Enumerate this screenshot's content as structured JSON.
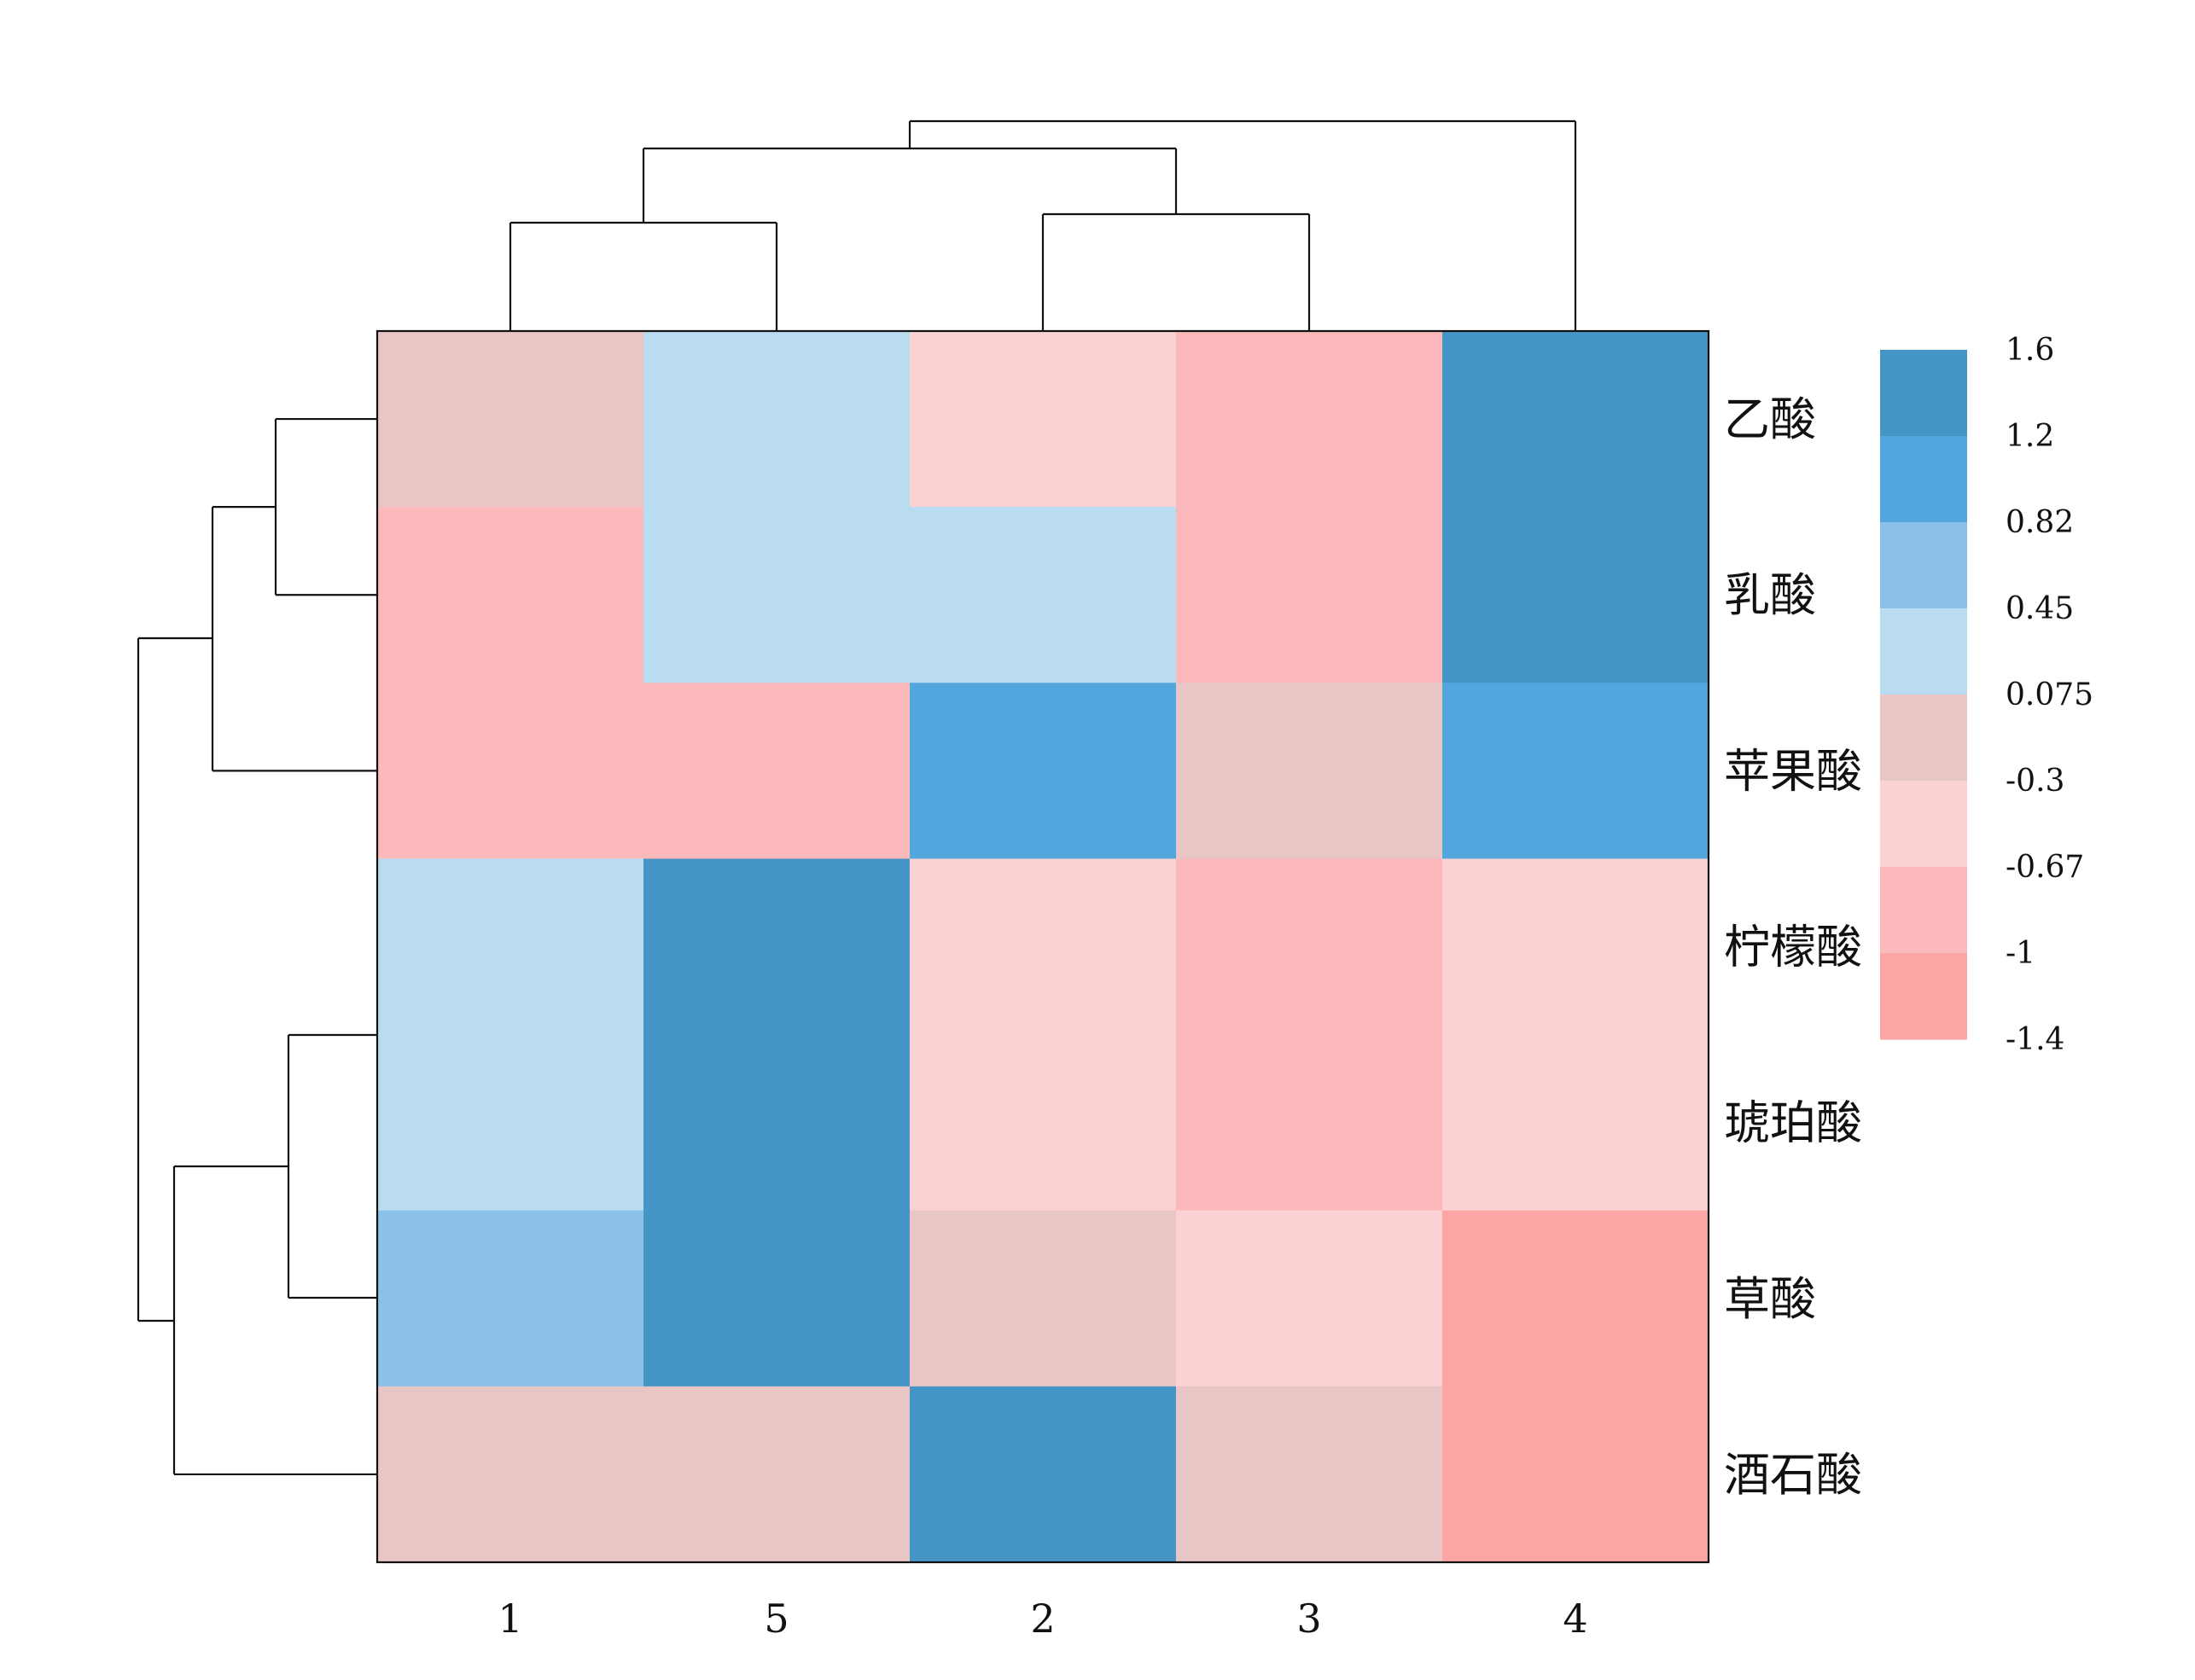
{
  "chart_data": {
    "type": "heatmap",
    "title": "",
    "columns": [
      "1",
      "5",
      "2",
      "3",
      "4"
    ],
    "rows": [
      "乙酸",
      "乳酸",
      "苹果酸",
      "柠檬酸",
      "琥珀酸",
      "草酸",
      "酒石酸"
    ],
    "values": [
      [
        -0.2,
        0.3,
        -0.5,
        -0.9,
        1.5
      ],
      [
        -0.9,
        0.3,
        0.3,
        -0.9,
        1.5
      ],
      [
        -0.9,
        -0.9,
        1.0,
        -0.2,
        1.0
      ],
      [
        0.3,
        1.5,
        -0.5,
        -0.9,
        -0.5
      ],
      [
        0.3,
        1.5,
        -0.5,
        -0.9,
        -0.5
      ],
      [
        0.65,
        1.5,
        -0.2,
        -0.5,
        -1.2
      ],
      [
        -0.2,
        -0.2,
        1.5,
        -0.2,
        -1.2
      ]
    ],
    "legend": {
      "breaks": [
        "1.6",
        "1.2",
        "0.82",
        "0.45",
        "0.075",
        "-0.3",
        "-0.67",
        "-1",
        "-1.4"
      ],
      "colors": [
        "#4596c6",
        "#53a7df",
        "#8bc1e9",
        "#badcf1",
        "#e8c6c6",
        "#fbd2d4",
        "#fcb9bb",
        "#fba5a4"
      ]
    },
    "column_dendrogram": "((1,5),(2,3)),4",
    "row_dendrogram": "((乙酸,乳酸),苹果酸),((柠檬酸,琥珀酸),草酸),酒石酸)"
  }
}
